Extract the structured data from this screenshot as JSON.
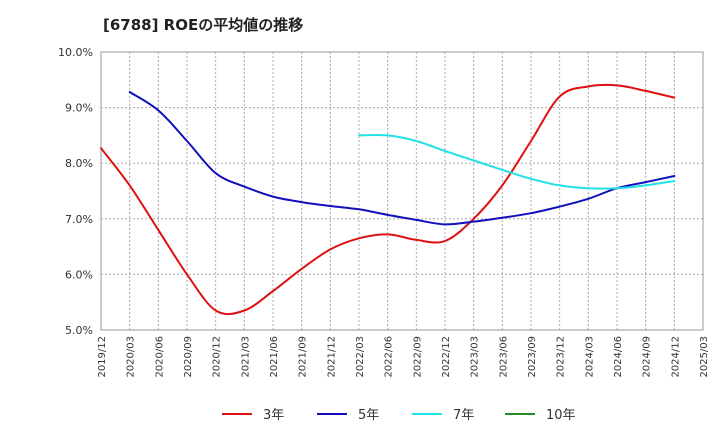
{
  "title": "[6788]  ROEの平均値の推移",
  "chart_data": {
    "type": "line",
    "title": "[6788]  ROEの平均値の推移",
    "xlabel": "",
    "ylabel": "",
    "ylim": [
      5.0,
      10.0
    ],
    "yticks": [
      "5.0%",
      "6.0%",
      "7.0%",
      "8.0%",
      "9.0%",
      "10.0%"
    ],
    "categories": [
      "2019/12",
      "2020/03",
      "2020/06",
      "2020/09",
      "2020/12",
      "2021/03",
      "2021/06",
      "2021/09",
      "2021/12",
      "2022/03",
      "2022/06",
      "2022/09",
      "2022/12",
      "2023/03",
      "2023/06",
      "2023/09",
      "2023/12",
      "2024/03",
      "2024/06",
      "2024/09",
      "2024/12",
      "2025/03"
    ],
    "grid": true,
    "legend_position": "bottom",
    "series": [
      {
        "name": "3年",
        "color": "#dd1111",
        "values": [
          8.27,
          7.6,
          6.8,
          6.0,
          5.35,
          5.35,
          5.7,
          6.1,
          6.45,
          6.65,
          6.72,
          6.62,
          6.6,
          7.0,
          7.6,
          8.4,
          9.2,
          9.38,
          9.4,
          9.3,
          9.18,
          null
        ]
      },
      {
        "name": "5年",
        "color": "#1111bb",
        "values": [
          null,
          9.28,
          8.95,
          8.4,
          7.82,
          7.58,
          7.4,
          7.3,
          7.23,
          7.17,
          7.07,
          6.98,
          6.9,
          6.95,
          7.02,
          7.1,
          7.22,
          7.36,
          7.55,
          7.66,
          7.77,
          null
        ]
      },
      {
        "name": "7年",
        "color": "#22e0e8",
        "values": [
          null,
          null,
          null,
          null,
          null,
          null,
          null,
          null,
          null,
          8.5,
          8.5,
          8.4,
          8.22,
          8.05,
          7.88,
          7.72,
          7.6,
          7.55,
          7.55,
          7.6,
          7.68,
          null
        ]
      },
      {
        "name": "10年",
        "color": "#228b22",
        "values": [
          null,
          null,
          null,
          null,
          null,
          null,
          null,
          null,
          null,
          null,
          null,
          null,
          null,
          null,
          null,
          null,
          null,
          null,
          null,
          null,
          null,
          null
        ]
      }
    ]
  }
}
